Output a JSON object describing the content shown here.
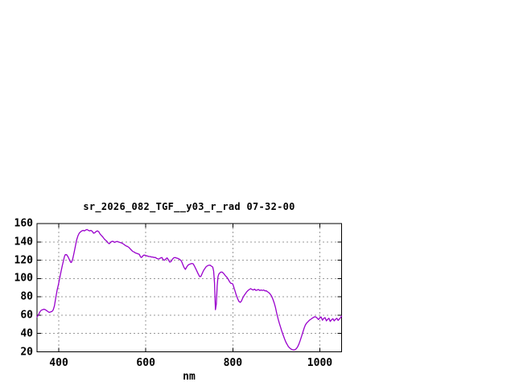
{
  "window": {
    "background": "#ffffff"
  },
  "chart_data": {
    "type": "line",
    "title": "sr_2026_082_TGF__y03_r_rad 07-32-00",
    "xlabel": "nm",
    "ylabel": "",
    "xlim": [
      350,
      1050
    ],
    "ylim": [
      20,
      160
    ],
    "xticks": [
      400,
      600,
      800,
      1000
    ],
    "yticks": [
      20,
      40,
      60,
      80,
      100,
      120,
      140,
      160
    ],
    "grid": true,
    "legend_position": "none",
    "line_color": "#9900cc",
    "grid_color": "#999999",
    "axis_color": "#000000",
    "text_color": "#000000",
    "series": [
      {
        "name": "sr_2026_082_TGF__y03_r_rad",
        "points": [
          [
            350,
            58
          ],
          [
            352,
            59.5
          ],
          [
            354,
            61
          ],
          [
            356,
            63
          ],
          [
            358,
            64.5
          ],
          [
            360,
            65.5
          ],
          [
            363,
            66
          ],
          [
            366,
            66.5
          ],
          [
            369,
            66
          ],
          [
            372,
            65
          ],
          [
            375,
            64
          ],
          [
            378,
            63
          ],
          [
            381,
            63.5
          ],
          [
            384,
            64
          ],
          [
            387,
            65.5
          ],
          [
            390,
            70
          ],
          [
            393,
            79
          ],
          [
            396,
            87
          ],
          [
            399,
            93
          ],
          [
            402,
            100
          ],
          [
            405,
            107
          ],
          [
            408,
            114
          ],
          [
            411,
            120
          ],
          [
            413,
            124
          ],
          [
            415,
            126
          ],
          [
            418,
            126
          ],
          [
            421,
            124
          ],
          [
            424,
            121
          ],
          [
            427,
            118
          ],
          [
            429,
            117.5
          ],
          [
            432,
            121
          ],
          [
            435,
            128
          ],
          [
            438,
            135
          ],
          [
            441,
            142
          ],
          [
            444,
            146.5
          ],
          [
            447,
            149.5
          ],
          [
            450,
            151
          ],
          [
            453,
            152
          ],
          [
            456,
            152.5
          ],
          [
            459,
            152
          ],
          [
            462,
            153
          ],
          [
            465,
            153.5
          ],
          [
            468,
            152.5
          ],
          [
            471,
            152
          ],
          [
            474,
            152.5
          ],
          [
            477,
            151.5
          ],
          [
            480,
            149.5
          ],
          [
            483,
            150
          ],
          [
            486,
            151.5
          ],
          [
            489,
            152
          ],
          [
            492,
            151
          ],
          [
            495,
            148.5
          ],
          [
            498,
            147
          ],
          [
            501,
            145.5
          ],
          [
            504,
            143.5
          ],
          [
            507,
            142
          ],
          [
            510,
            141
          ],
          [
            513,
            139
          ],
          [
            516,
            138
          ],
          [
            519,
            139.5
          ],
          [
            522,
            140.5
          ],
          [
            525,
            140.5
          ],
          [
            528,
            139.5
          ],
          [
            531,
            140
          ],
          [
            534,
            140.5
          ],
          [
            537,
            140
          ],
          [
            540,
            139.5
          ],
          [
            543,
            139
          ],
          [
            546,
            138.5
          ],
          [
            549,
            137.5
          ],
          [
            552,
            136.5
          ],
          [
            555,
            135.5
          ],
          [
            558,
            135
          ],
          [
            561,
            134
          ],
          [
            564,
            132.5
          ],
          [
            567,
            131
          ],
          [
            570,
            129.5
          ],
          [
            573,
            129
          ],
          [
            576,
            128
          ],
          [
            579,
            127.5
          ],
          [
            582,
            127
          ],
          [
            585,
            126.5
          ],
          [
            588,
            123.5
          ],
          [
            590,
            123
          ],
          [
            592,
            124
          ],
          [
            595,
            125.5
          ],
          [
            598,
            125.5
          ],
          [
            601,
            125
          ],
          [
            604,
            124.5
          ],
          [
            607,
            124
          ],
          [
            610,
            124
          ],
          [
            613,
            123.5
          ],
          [
            616,
            123.5
          ],
          [
            619,
            123
          ],
          [
            622,
            123
          ],
          [
            625,
            122
          ],
          [
            628,
            121.5
          ],
          [
            631,
            121.5
          ],
          [
            634,
            122.5
          ],
          [
            637,
            123
          ],
          [
            640,
            120.5
          ],
          [
            643,
            120
          ],
          [
            646,
            121.5
          ],
          [
            649,
            122.5
          ],
          [
            652,
            120.5
          ],
          [
            655,
            118
          ],
          [
            658,
            118.5
          ],
          [
            661,
            121
          ],
          [
            664,
            122.5
          ],
          [
            667,
            123
          ],
          [
            670,
            122.5
          ],
          [
            673,
            122
          ],
          [
            676,
            121.5
          ],
          [
            679,
            120.5
          ],
          [
            682,
            119
          ],
          [
            685,
            115.5
          ],
          [
            688,
            112
          ],
          [
            691,
            110
          ],
          [
            694,
            112.5
          ],
          [
            697,
            114.5
          ],
          [
            700,
            115.5
          ],
          [
            703,
            116
          ],
          [
            706,
            116.5
          ],
          [
            709,
            116
          ],
          [
            712,
            113.5
          ],
          [
            715,
            110.5
          ],
          [
            718,
            107.5
          ],
          [
            721,
            104.5
          ],
          [
            724,
            102
          ],
          [
            727,
            102.5
          ],
          [
            730,
            106
          ],
          [
            733,
            109
          ],
          [
            736,
            111
          ],
          [
            739,
            113
          ],
          [
            742,
            114
          ],
          [
            745,
            114.5
          ],
          [
            748,
            114.5
          ],
          [
            751,
            113.5
          ],
          [
            754,
            112.5
          ],
          [
            756,
            108
          ],
          [
            758,
            95
          ],
          [
            760,
            66
          ],
          [
            762,
            72
          ],
          [
            764,
            92
          ],
          [
            766,
            102
          ],
          [
            768,
            105
          ],
          [
            772,
            107
          ],
          [
            776,
            107
          ],
          [
            780,
            105
          ],
          [
            783,
            103
          ],
          [
            786,
            101.5
          ],
          [
            789,
            99.5
          ],
          [
            792,
            97
          ],
          [
            795,
            95
          ],
          [
            798,
            94.5
          ],
          [
            800,
            94
          ],
          [
            802,
            91
          ],
          [
            805,
            86.5
          ],
          [
            808,
            82
          ],
          [
            811,
            78
          ],
          [
            814,
            75
          ],
          [
            817,
            74
          ],
          [
            820,
            75.5
          ],
          [
            823,
            79
          ],
          [
            826,
            81.5
          ],
          [
            829,
            83.5
          ],
          [
            832,
            85.5
          ],
          [
            835,
            87
          ],
          [
            838,
            88
          ],
          [
            841,
            89
          ],
          [
            844,
            88
          ],
          [
            847,
            87.5
          ],
          [
            850,
            88.5
          ],
          [
            853,
            87
          ],
          [
            856,
            87.5
          ],
          [
            859,
            88
          ],
          [
            862,
            87
          ],
          [
            865,
            87.5
          ],
          [
            868,
            87
          ],
          [
            871,
            87.5
          ],
          [
            874,
            86.5
          ],
          [
            877,
            86.5
          ],
          [
            880,
            85.5
          ],
          [
            883,
            84.5
          ],
          [
            886,
            83
          ],
          [
            889,
            81
          ],
          [
            892,
            77.5
          ],
          [
            895,
            73.5
          ],
          [
            898,
            68.5
          ],
          [
            901,
            62
          ],
          [
            904,
            56
          ],
          [
            907,
            51
          ],
          [
            910,
            46.5
          ],
          [
            913,
            42
          ],
          [
            916,
            38
          ],
          [
            919,
            34
          ],
          [
            922,
            30.5
          ],
          [
            925,
            28
          ],
          [
            928,
            25.5
          ],
          [
            931,
            24
          ],
          [
            934,
            23
          ],
          [
            937,
            22.3
          ],
          [
            940,
            22
          ],
          [
            943,
            22.3
          ],
          [
            946,
            23.5
          ],
          [
            949,
            25.5
          ],
          [
            952,
            28.5
          ],
          [
            955,
            32.5
          ],
          [
            958,
            37
          ],
          [
            961,
            41.5
          ],
          [
            964,
            46
          ],
          [
            967,
            49.5
          ],
          [
            970,
            51.5
          ],
          [
            973,
            53
          ],
          [
            976,
            54.5
          ],
          [
            979,
            55.5
          ],
          [
            982,
            56.5
          ],
          [
            985,
            57.5
          ],
          [
            988,
            58.3
          ],
          [
            991,
            58
          ],
          [
            994,
            56.8
          ],
          [
            997,
            55.2
          ],
          [
            1000,
            57
          ],
          [
            1003,
            58
          ],
          [
            1006,
            54.5
          ],
          [
            1009,
            56.5
          ],
          [
            1012,
            57.3
          ],
          [
            1015,
            53.8
          ],
          [
            1018,
            55.5
          ],
          [
            1021,
            56.6
          ],
          [
            1024,
            53.2
          ],
          [
            1027,
            55
          ],
          [
            1030,
            56.2
          ],
          [
            1033,
            53.8
          ],
          [
            1036,
            55.5
          ],
          [
            1039,
            56.6
          ],
          [
            1042,
            54.3
          ],
          [
            1045,
            56
          ],
          [
            1048,
            57.5
          ],
          [
            1050,
            59
          ]
        ]
      }
    ]
  }
}
